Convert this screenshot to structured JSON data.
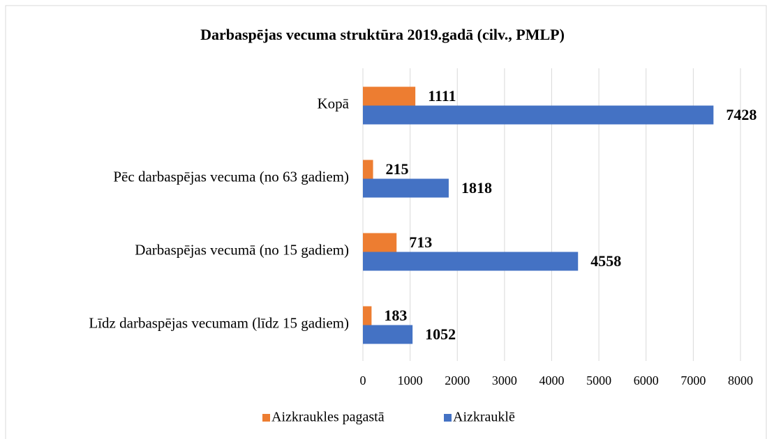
{
  "chart_data": {
    "type": "hbar",
    "title": "Darbaspējas vecuma struktūra 2019.gadā (cilv., PMLP)",
    "categories": [
      "Kopā",
      "Pēc darbaspējas vecuma (no 63 gadiem)",
      "Darbaspējas vecumā (no 15 gadiem)",
      "Līdz darbaspējas vecumam (līdz 15 gadiem)"
    ],
    "series": [
      {
        "name": "Aizkraukles pagastā",
        "color": "#ed7d31",
        "values": [
          1111,
          215,
          713,
          183
        ]
      },
      {
        "name": "Aizkrauklē",
        "color": "#4472c4",
        "values": [
          7428,
          1818,
          4558,
          1052
        ]
      }
    ],
    "xlim": [
      0,
      8000
    ],
    "xticks": [
      0,
      1000,
      2000,
      3000,
      4000,
      5000,
      6000,
      7000,
      8000
    ],
    "grid": true,
    "legend": "bottom"
  }
}
